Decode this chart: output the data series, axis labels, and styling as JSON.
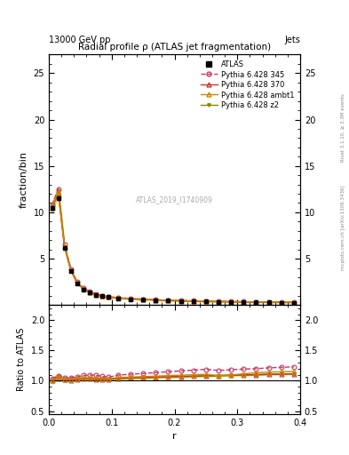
{
  "title": "Radial profile ρ (ATLAS jet fragmentation)",
  "top_left_label": "13000 GeV pp",
  "top_right_label": "Jets",
  "ylabel_main": "fraction/bin",
  "ylabel_ratio": "Ratio to ATLAS",
  "xlabel": "r",
  "watermark": "ATLAS_2019_I1740909",
  "right_label_top": "Rivet 3.1.10, ≥ 3.3M events",
  "right_label_bottom": "mcplots.cern.ch [arXiv:1306.3436]",
  "ylim_main": [
    0,
    27
  ],
  "ylim_ratio": [
    0.45,
    2.25
  ],
  "yticks_main": [
    5,
    10,
    15,
    20,
    25
  ],
  "yticks_ratio": [
    0.5,
    1.0,
    1.5,
    2.0
  ],
  "xlim": [
    0,
    0.4
  ],
  "xticks": [
    0.0,
    0.1,
    0.2,
    0.3,
    0.4
  ],
  "r_values": [
    0.005,
    0.015,
    0.025,
    0.035,
    0.045,
    0.055,
    0.065,
    0.075,
    0.085,
    0.095,
    0.11,
    0.13,
    0.15,
    0.17,
    0.19,
    0.21,
    0.23,
    0.25,
    0.27,
    0.29,
    0.31,
    0.33,
    0.35,
    0.37,
    0.39
  ],
  "atlas_y": [
    10.5,
    11.5,
    6.2,
    3.7,
    2.35,
    1.7,
    1.35,
    1.1,
    0.95,
    0.85,
    0.75,
    0.65,
    0.58,
    0.52,
    0.47,
    0.43,
    0.4,
    0.37,
    0.35,
    0.33,
    0.31,
    0.3,
    0.28,
    0.27,
    0.26
  ],
  "atlas_err": [
    0.3,
    0.3,
    0.15,
    0.1,
    0.07,
    0.05,
    0.04,
    0.03,
    0.025,
    0.022,
    0.02,
    0.018,
    0.015,
    0.014,
    0.013,
    0.012,
    0.011,
    0.01,
    0.01,
    0.01,
    0.009,
    0.009,
    0.008,
    0.008,
    0.008
  ],
  "p345_y": [
    10.8,
    12.5,
    6.5,
    3.9,
    2.5,
    1.85,
    1.48,
    1.2,
    1.02,
    0.9,
    0.82,
    0.72,
    0.65,
    0.59,
    0.54,
    0.5,
    0.47,
    0.44,
    0.41,
    0.39,
    0.37,
    0.36,
    0.34,
    0.33,
    0.32
  ],
  "p370_y": [
    10.5,
    12.0,
    6.3,
    3.75,
    2.4,
    1.75,
    1.4,
    1.13,
    0.97,
    0.87,
    0.78,
    0.68,
    0.61,
    0.55,
    0.5,
    0.46,
    0.43,
    0.4,
    0.38,
    0.36,
    0.34,
    0.33,
    0.31,
    0.3,
    0.29
  ],
  "pambt1_y": [
    10.6,
    12.2,
    6.35,
    3.8,
    2.45,
    1.78,
    1.42,
    1.15,
    0.99,
    0.88,
    0.79,
    0.69,
    0.62,
    0.56,
    0.51,
    0.47,
    0.44,
    0.41,
    0.39,
    0.37,
    0.35,
    0.34,
    0.32,
    0.31,
    0.3
  ],
  "pz2_y": [
    10.5,
    12.3,
    6.3,
    3.78,
    2.42,
    1.76,
    1.4,
    1.14,
    0.98,
    0.87,
    0.78,
    0.68,
    0.61,
    0.55,
    0.5,
    0.46,
    0.43,
    0.4,
    0.38,
    0.36,
    0.34,
    0.33,
    0.31,
    0.3,
    0.29
  ],
  "pz2_err": [
    0.5,
    0.5,
    0.22,
    0.15,
    0.1,
    0.07,
    0.055,
    0.045,
    0.035,
    0.03,
    0.025,
    0.022,
    0.019,
    0.017,
    0.015,
    0.014,
    0.013,
    0.012,
    0.011,
    0.011,
    0.01,
    0.01,
    0.009,
    0.009,
    0.009
  ],
  "ratio_p345": [
    1.03,
    1.087,
    1.048,
    1.054,
    1.064,
    1.088,
    1.096,
    1.09,
    1.074,
    1.059,
    1.093,
    1.108,
    1.121,
    1.135,
    1.149,
    1.163,
    1.175,
    1.189,
    1.171,
    1.182,
    1.194,
    1.2,
    1.214,
    1.222,
    1.231
  ],
  "ratio_p370": [
    1.0,
    1.043,
    1.016,
    1.014,
    1.021,
    1.029,
    1.037,
    1.027,
    1.021,
    1.024,
    1.04,
    1.046,
    1.052,
    1.058,
    1.064,
    1.07,
    1.075,
    1.08,
    1.086,
    1.09,
    1.097,
    1.1,
    1.107,
    1.11,
    1.115
  ],
  "ratio_pambt1": [
    1.01,
    1.06,
    1.024,
    1.027,
    1.043,
    1.047,
    1.052,
    1.045,
    1.042,
    1.035,
    1.053,
    1.062,
    1.069,
    1.077,
    1.085,
    1.093,
    1.1,
    1.108,
    1.086,
    1.095,
    1.116,
    1.133,
    1.143,
    1.148,
    1.154
  ],
  "ratio_pz2": [
    1.0,
    1.07,
    1.016,
    1.022,
    1.03,
    1.035,
    1.037,
    1.036,
    1.032,
    1.024,
    1.04,
    1.046,
    1.052,
    1.058,
    1.064,
    1.07,
    1.075,
    1.08,
    1.086,
    1.09,
    1.097,
    1.1,
    1.107,
    1.11,
    1.115
  ],
  "ratio_pz2_err": [
    0.05,
    0.043,
    0.036,
    0.03,
    0.026,
    0.023,
    0.02,
    0.018,
    0.017,
    0.016,
    0.015,
    0.013,
    0.012,
    0.011,
    0.011,
    0.01,
    0.01,
    0.01,
    0.009,
    0.009,
    0.009,
    0.008,
    0.008,
    0.008,
    0.008
  ],
  "color_atlas": "#000000",
  "color_p345": "#cc3366",
  "color_p370": "#cc3333",
  "color_pambt1": "#cc8800",
  "color_pz2": "#888800",
  "color_pz2_band": "#aacc00",
  "legend_labels": [
    "ATLAS",
    "Pythia 6.428 345",
    "Pythia 6.428 370",
    "Pythia 6.428 ambt1",
    "Pythia 6.428 z2"
  ]
}
